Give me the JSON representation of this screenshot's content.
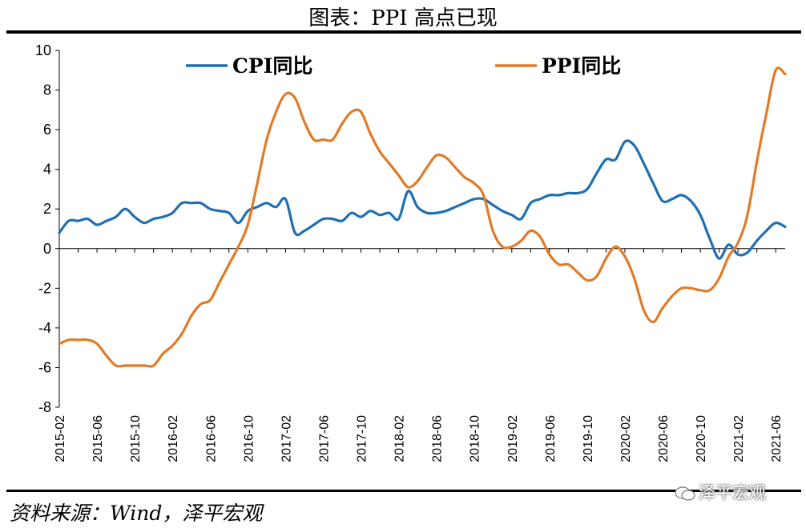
{
  "page": {
    "title": "图表：PPI 高点已现",
    "source": "资料来源：Wind，泽平宏观",
    "watermark": "泽平宏观"
  },
  "chart_data": {
    "type": "line",
    "title": "图表：PPI 高点已现",
    "xlabel": "",
    "ylabel": "",
    "ylim": [
      -8,
      10
    ],
    "yticks": [
      "10",
      "8",
      "6",
      "4",
      "2",
      "0",
      "-2",
      "-4",
      "-6",
      "-8"
    ],
    "x_tick_labels": [
      "2015-02",
      "2015-06",
      "2015-10",
      "2016-02",
      "2016-06",
      "2016-10",
      "2017-02",
      "2017-06",
      "2017-10",
      "2018-02",
      "2018-06",
      "2018-10",
      "2019-02",
      "2019-06",
      "2019-10",
      "2020-02",
      "2020-06",
      "2020-10",
      "2021-02",
      "2021-06"
    ],
    "legend_position": "top",
    "series": [
      {
        "name": "CPI同比",
        "color": "#1f6fb2",
        "values": [
          0.8,
          1.4,
          1.4,
          1.5,
          1.2,
          1.4,
          1.6,
          2.0,
          1.6,
          1.3,
          1.5,
          1.6,
          1.8,
          2.3,
          2.3,
          2.3,
          2.0,
          1.9,
          1.8,
          1.3,
          1.9,
          2.1,
          2.3,
          2.1,
          2.5,
          0.8,
          0.9,
          1.2,
          1.5,
          1.5,
          1.4,
          1.8,
          1.6,
          1.9,
          1.7,
          1.8,
          1.5,
          2.9,
          2.1,
          1.8,
          1.8,
          1.9,
          2.1,
          2.3,
          2.5,
          2.5,
          2.2,
          1.9,
          1.7,
          1.5,
          2.3,
          2.5,
          2.7,
          2.7,
          2.8,
          2.8,
          3.0,
          3.8,
          4.5,
          4.5,
          5.4,
          5.2,
          4.3,
          3.3,
          2.4,
          2.5,
          2.7,
          2.4,
          1.7,
          0.5,
          -0.5,
          0.2,
          -0.3,
          -0.2,
          0.4,
          0.9,
          1.3,
          1.1
        ]
      },
      {
        "name": "PPI同比",
        "color": "#e07b28",
        "values": [
          -4.8,
          -4.6,
          -4.6,
          -4.6,
          -4.8,
          -5.4,
          -5.9,
          -5.9,
          -5.9,
          -5.9,
          -5.9,
          -5.3,
          -4.9,
          -4.3,
          -3.4,
          -2.8,
          -2.6,
          -1.7,
          -0.8,
          0.1,
          1.2,
          3.3,
          5.5,
          6.9,
          7.8,
          7.6,
          6.4,
          5.5,
          5.5,
          5.5,
          6.3,
          6.9,
          6.9,
          5.8,
          4.9,
          4.3,
          3.7,
          3.1,
          3.4,
          4.1,
          4.7,
          4.6,
          4.1,
          3.6,
          3.3,
          2.7,
          0.9,
          0.1,
          0.1,
          0.4,
          0.9,
          0.6,
          -0.3,
          -0.8,
          -0.8,
          -1.2,
          -1.6,
          -1.4,
          -0.5,
          0.1,
          -0.4,
          -1.5,
          -3.1,
          -3.7,
          -3.0,
          -2.4,
          -2.0,
          -2.0,
          -2.1,
          -2.1,
          -1.5,
          -0.4,
          0.3,
          1.7,
          4.4,
          6.8,
          9.0,
          8.8
        ]
      }
    ]
  }
}
